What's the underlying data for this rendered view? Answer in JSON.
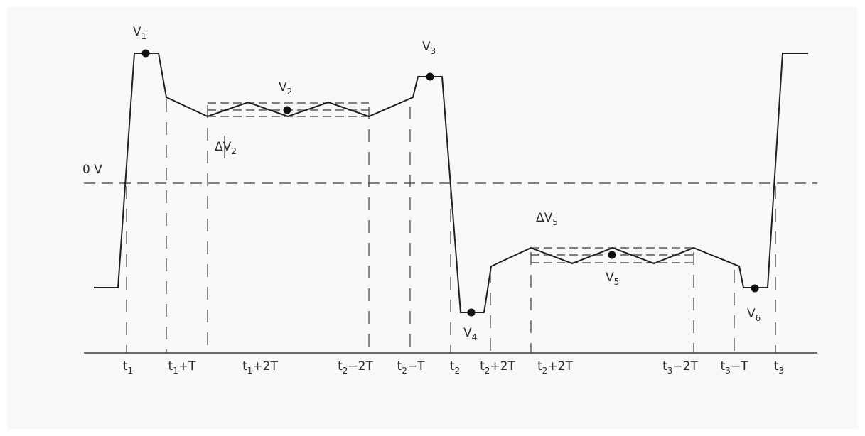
{
  "zero_label": "0 V",
  "voltage_labels": {
    "v1": {
      "main": "V",
      "sub": "1"
    },
    "v2": {
      "main": "V",
      "sub": "2"
    },
    "v3": {
      "main": "V",
      "sub": "3"
    },
    "v4": {
      "main": "V",
      "sub": "4"
    },
    "v5": {
      "main": "V",
      "sub": "5"
    },
    "v6": {
      "main": "V",
      "sub": "6"
    }
  },
  "delta_labels": {
    "dv2": {
      "main": "ΔV",
      "sub": "2"
    },
    "dv5": {
      "main": "ΔV",
      "sub": "5"
    }
  },
  "time_labels": [
    {
      "main": "t",
      "sub": "1",
      "rest": ""
    },
    {
      "main": "t",
      "sub": "1",
      "rest": "+T"
    },
    {
      "main": "t",
      "sub": "1",
      "rest": "+2T"
    },
    {
      "main": "t",
      "sub": "2",
      "rest": "−2T"
    },
    {
      "main": "t",
      "sub": "2",
      "rest": "−T"
    },
    {
      "main": "t",
      "sub": "2",
      "rest": ""
    },
    {
      "main": "t",
      "sub": "2",
      "rest": "+2T"
    },
    {
      "main": "t",
      "sub": "2",
      "rest": "+2T"
    },
    {
      "main": "t",
      "sub": "3",
      "rest": "−2T"
    },
    {
      "main": "t",
      "sub": "3",
      "rest": "−T"
    },
    {
      "main": "t",
      "sub": "3",
      "rest": ""
    }
  ],
  "colors": {
    "background": "#f7f8f8",
    "line": "#1f1f1f"
  }
}
